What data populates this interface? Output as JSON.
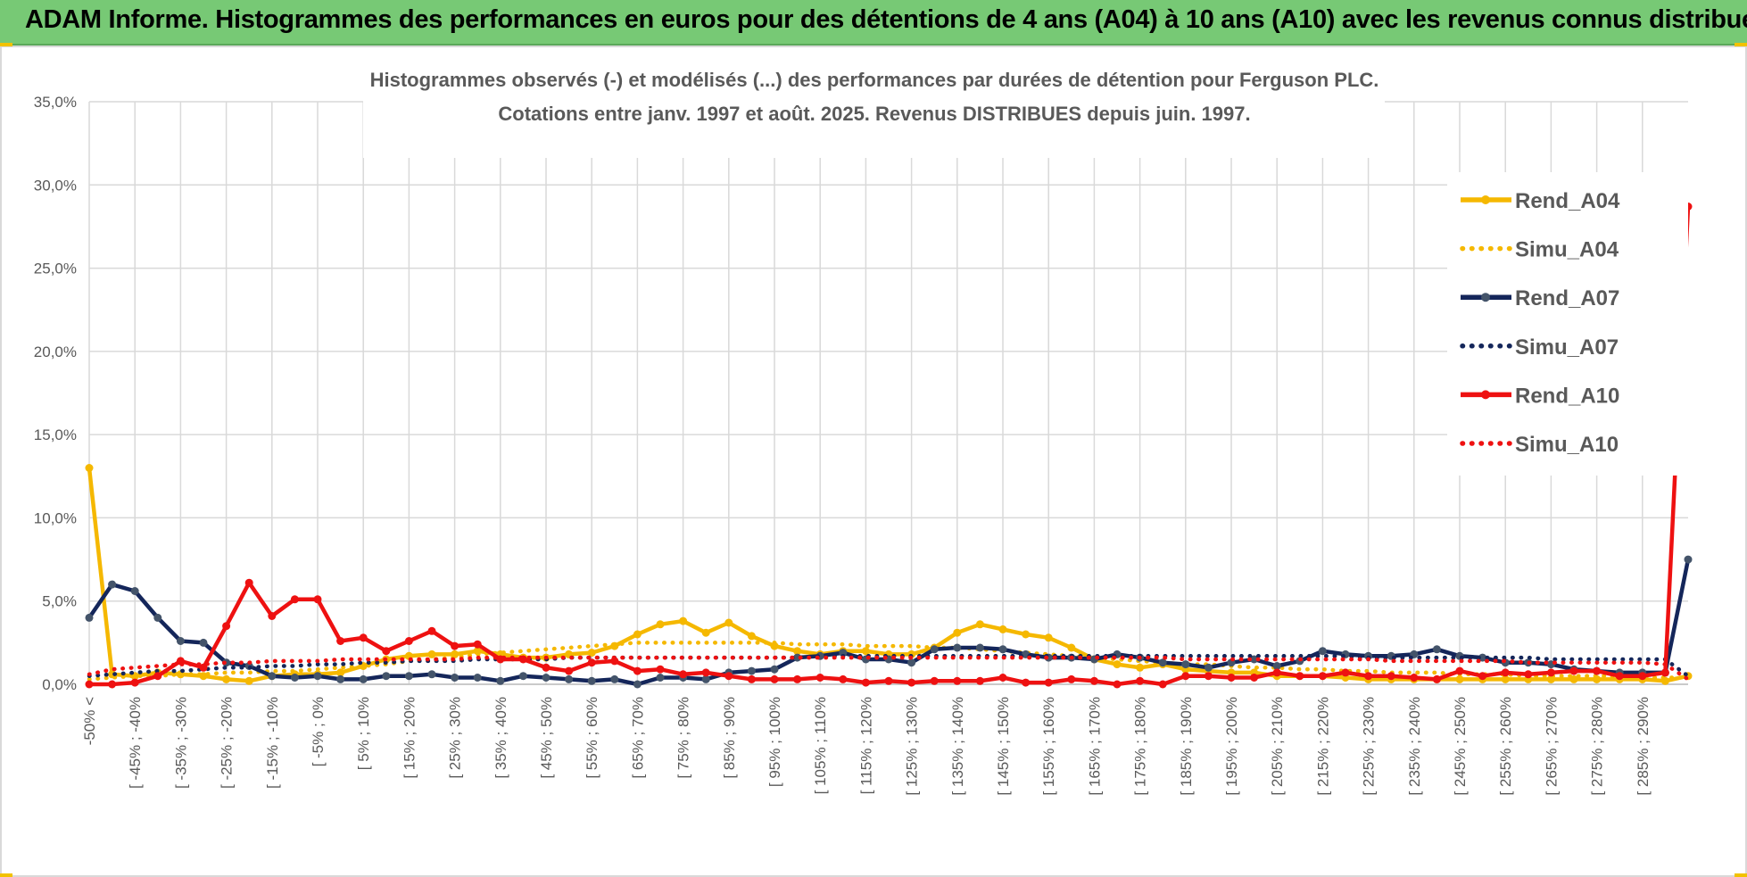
{
  "banner": {
    "title": "ADAM Informe. Histogrammes des performances en euros pour des détentions de 4 ans (A04) à 10 ans (A10) avec les revenus connus distribués"
  },
  "colors": {
    "banner_bg": "#77c975",
    "A04": "#f5b800",
    "A07": "#14265a",
    "A10": "#ee1111",
    "grid": "#d9d9d9",
    "text": "#595959"
  },
  "chart_data": {
    "type": "line",
    "title_lines": [
      "Histogrammes observés (-) et modélisés (...) des performances par durées de détention pour Ferguson PLC.",
      "Cotations entre janv. 1997 et août. 2025. Revenus DISTRIBUES depuis juin. 1997."
    ],
    "ylim": [
      0,
      35
    ],
    "yticks": [
      "0,0%",
      "5,0%",
      "10,0%",
      "15,0%",
      "20,0%",
      "25,0%",
      "30,0%",
      "35,0%"
    ],
    "ytick_values": [
      0,
      5,
      10,
      15,
      20,
      25,
      30,
      35
    ],
    "y_unit": "%",
    "grid": true,
    "legend_position": "right",
    "x_count": 71,
    "x_labels": [
      "-50% <",
      "[ -45% ; -40%",
      "[ -35% ; -30%",
      "[ -25% ; -20%",
      "[ -15% ; -10%",
      "[ -5% ; 0%",
      "[ 5% ; 10%",
      "[ 15% ; 20%",
      "[ 25% ; 30%",
      "[ 35% ; 40%",
      "[ 45% ; 50%",
      "[ 55% ; 60%",
      "[ 65% ; 70%",
      "[ 75% ; 80%",
      "[ 85% ; 90%",
      "[ 95% ; 100%",
      "[ 105% ; 110%",
      "[ 115% ; 120%",
      "[ 125% ; 130%",
      "[ 135% ; 140%",
      "[ 145% ; 150%",
      "[ 155% ; 160%",
      "[ 165% ; 170%",
      "[ 175% ; 180%",
      "[ 185% ; 190%",
      "[ 195% ; 200%",
      "[ 205% ; 210%",
      "[ 215% ; 220%",
      "[ 225% ; 230%",
      "[ 235% ; 240%",
      "[ 245% ; 250%",
      "[ 255% ; 260%",
      "[ 265% ; 270%",
      "[ 275% ; 280%",
      "[ 285% ; 290%"
    ],
    "series": [
      {
        "name": "Rend_A04",
        "style": "solid",
        "color": "#f5b800",
        "values": [
          13.0,
          0.6,
          0.5,
          0.7,
          0.6,
          0.5,
          0.3,
          0.2,
          0.5,
          0.6,
          0.6,
          0.7,
          1.1,
          1.5,
          1.7,
          1.8,
          1.8,
          2.0,
          1.8,
          1.6,
          1.6,
          1.8,
          1.9,
          2.3,
          3.0,
          3.6,
          3.8,
          3.1,
          3.7,
          2.9,
          2.3,
          2.0,
          1.8,
          2.0,
          2.0,
          1.8,
          1.8,
          2.2,
          3.1,
          3.6,
          3.3,
          3.0,
          2.8,
          2.2,
          1.5,
          1.2,
          1.0,
          1.2,
          0.9,
          0.8,
          0.7,
          0.7,
          0.5,
          0.5,
          0.5,
          0.4,
          0.3,
          0.3,
          0.3,
          0.3,
          0.3,
          0.3,
          0.3,
          0.3,
          0.3,
          0.3,
          0.3,
          0.3,
          0.3,
          0.2,
          0.5
        ]
      },
      {
        "name": "Simu_A04",
        "style": "dotted",
        "color": "#f5b800",
        "values": [
          0.3,
          0.4,
          0.5,
          0.5,
          0.6,
          0.6,
          0.7,
          0.7,
          0.8,
          0.8,
          0.9,
          1.0,
          1.1,
          1.2,
          1.4,
          1.5,
          1.6,
          1.8,
          1.9,
          2.0,
          2.1,
          2.2,
          2.3,
          2.4,
          2.5,
          2.5,
          2.5,
          2.5,
          2.5,
          2.5,
          2.5,
          2.4,
          2.4,
          2.4,
          2.3,
          2.3,
          2.3,
          2.2,
          2.2,
          2.1,
          2.0,
          1.9,
          1.8,
          1.7,
          1.6,
          1.5,
          1.4,
          1.3,
          1.2,
          1.2,
          1.1,
          1.0,
          1.0,
          0.9,
          0.9,
          0.8,
          0.8,
          0.7,
          0.7,
          0.7,
          0.6,
          0.6,
          0.6,
          0.5,
          0.5,
          0.5,
          0.5,
          0.5,
          0.4,
          0.4,
          0.4
        ]
      },
      {
        "name": "Rend_A07",
        "style": "solid",
        "color": "#14265a",
        "values": [
          4.0,
          6.0,
          5.6,
          4.0,
          2.6,
          2.5,
          1.3,
          1.1,
          0.5,
          0.4,
          0.5,
          0.3,
          0.3,
          0.5,
          0.5,
          0.6,
          0.4,
          0.4,
          0.2,
          0.5,
          0.4,
          0.3,
          0.2,
          0.3,
          0.0,
          0.4,
          0.4,
          0.3,
          0.7,
          0.8,
          0.9,
          1.6,
          1.7,
          1.9,
          1.5,
          1.5,
          1.3,
          2.1,
          2.2,
          2.2,
          2.1,
          1.8,
          1.6,
          1.6,
          1.5,
          1.8,
          1.6,
          1.3,
          1.2,
          1.0,
          1.3,
          1.5,
          1.1,
          1.4,
          2.0,
          1.8,
          1.7,
          1.7,
          1.8,
          2.1,
          1.7,
          1.6,
          1.3,
          1.3,
          1.2,
          0.9,
          0.8,
          0.7,
          0.7,
          0.7,
          7.5
        ]
      },
      {
        "name": "Simu_A07",
        "style": "dotted",
        "color": "#14265a",
        "values": [
          0.5,
          0.6,
          0.7,
          0.8,
          0.8,
          0.9,
          1.0,
          1.0,
          1.1,
          1.1,
          1.2,
          1.2,
          1.3,
          1.3,
          1.4,
          1.4,
          1.4,
          1.5,
          1.5,
          1.5,
          1.5,
          1.6,
          1.6,
          1.6,
          1.6,
          1.6,
          1.6,
          1.6,
          1.6,
          1.6,
          1.6,
          1.6,
          1.7,
          1.7,
          1.7,
          1.7,
          1.7,
          1.7,
          1.7,
          1.7,
          1.7,
          1.7,
          1.7,
          1.7,
          1.7,
          1.7,
          1.7,
          1.7,
          1.7,
          1.7,
          1.7,
          1.7,
          1.7,
          1.7,
          1.7,
          1.7,
          1.6,
          1.6,
          1.6,
          1.6,
          1.6,
          1.6,
          1.6,
          1.6,
          1.5,
          1.5,
          1.5,
          1.5,
          1.5,
          1.5,
          0.5
        ]
      },
      {
        "name": "Rend_A10",
        "style": "solid",
        "color": "#ee1111",
        "values": [
          0.0,
          0.0,
          0.1,
          0.5,
          1.4,
          1.0,
          3.5,
          6.1,
          4.1,
          5.1,
          5.1,
          2.6,
          2.8,
          2.0,
          2.6,
          3.2,
          2.3,
          2.4,
          1.5,
          1.5,
          1.0,
          0.8,
          1.3,
          1.4,
          0.8,
          0.9,
          0.6,
          0.7,
          0.5,
          0.3,
          0.3,
          0.3,
          0.4,
          0.3,
          0.1,
          0.2,
          0.1,
          0.2,
          0.2,
          0.2,
          0.4,
          0.1,
          0.1,
          0.3,
          0.2,
          0.0,
          0.2,
          0.0,
          0.5,
          0.5,
          0.4,
          0.4,
          0.7,
          0.5,
          0.5,
          0.7,
          0.5,
          0.5,
          0.4,
          0.3,
          0.8,
          0.5,
          0.7,
          0.6,
          0.7,
          0.8,
          0.8,
          0.5,
          0.5,
          0.7,
          28.7
        ]
      },
      {
        "name": "Simu_A10",
        "style": "dotted",
        "color": "#ee1111",
        "values": [
          0.6,
          0.9,
          1.0,
          1.1,
          1.2,
          1.2,
          1.3,
          1.3,
          1.4,
          1.4,
          1.4,
          1.5,
          1.5,
          1.5,
          1.5,
          1.5,
          1.5,
          1.6,
          1.6,
          1.6,
          1.6,
          1.6,
          1.6,
          1.6,
          1.6,
          1.6,
          1.6,
          1.6,
          1.6,
          1.6,
          1.6,
          1.6,
          1.6,
          1.6,
          1.6,
          1.6,
          1.6,
          1.6,
          1.6,
          1.6,
          1.6,
          1.6,
          1.6,
          1.6,
          1.6,
          1.6,
          1.6,
          1.6,
          1.5,
          1.5,
          1.5,
          1.5,
          1.5,
          1.5,
          1.5,
          1.5,
          1.5,
          1.4,
          1.4,
          1.4,
          1.4,
          1.4,
          1.4,
          1.3,
          1.3,
          1.3,
          1.3,
          1.3,
          1.3,
          1.2,
          0.3
        ]
      }
    ]
  }
}
